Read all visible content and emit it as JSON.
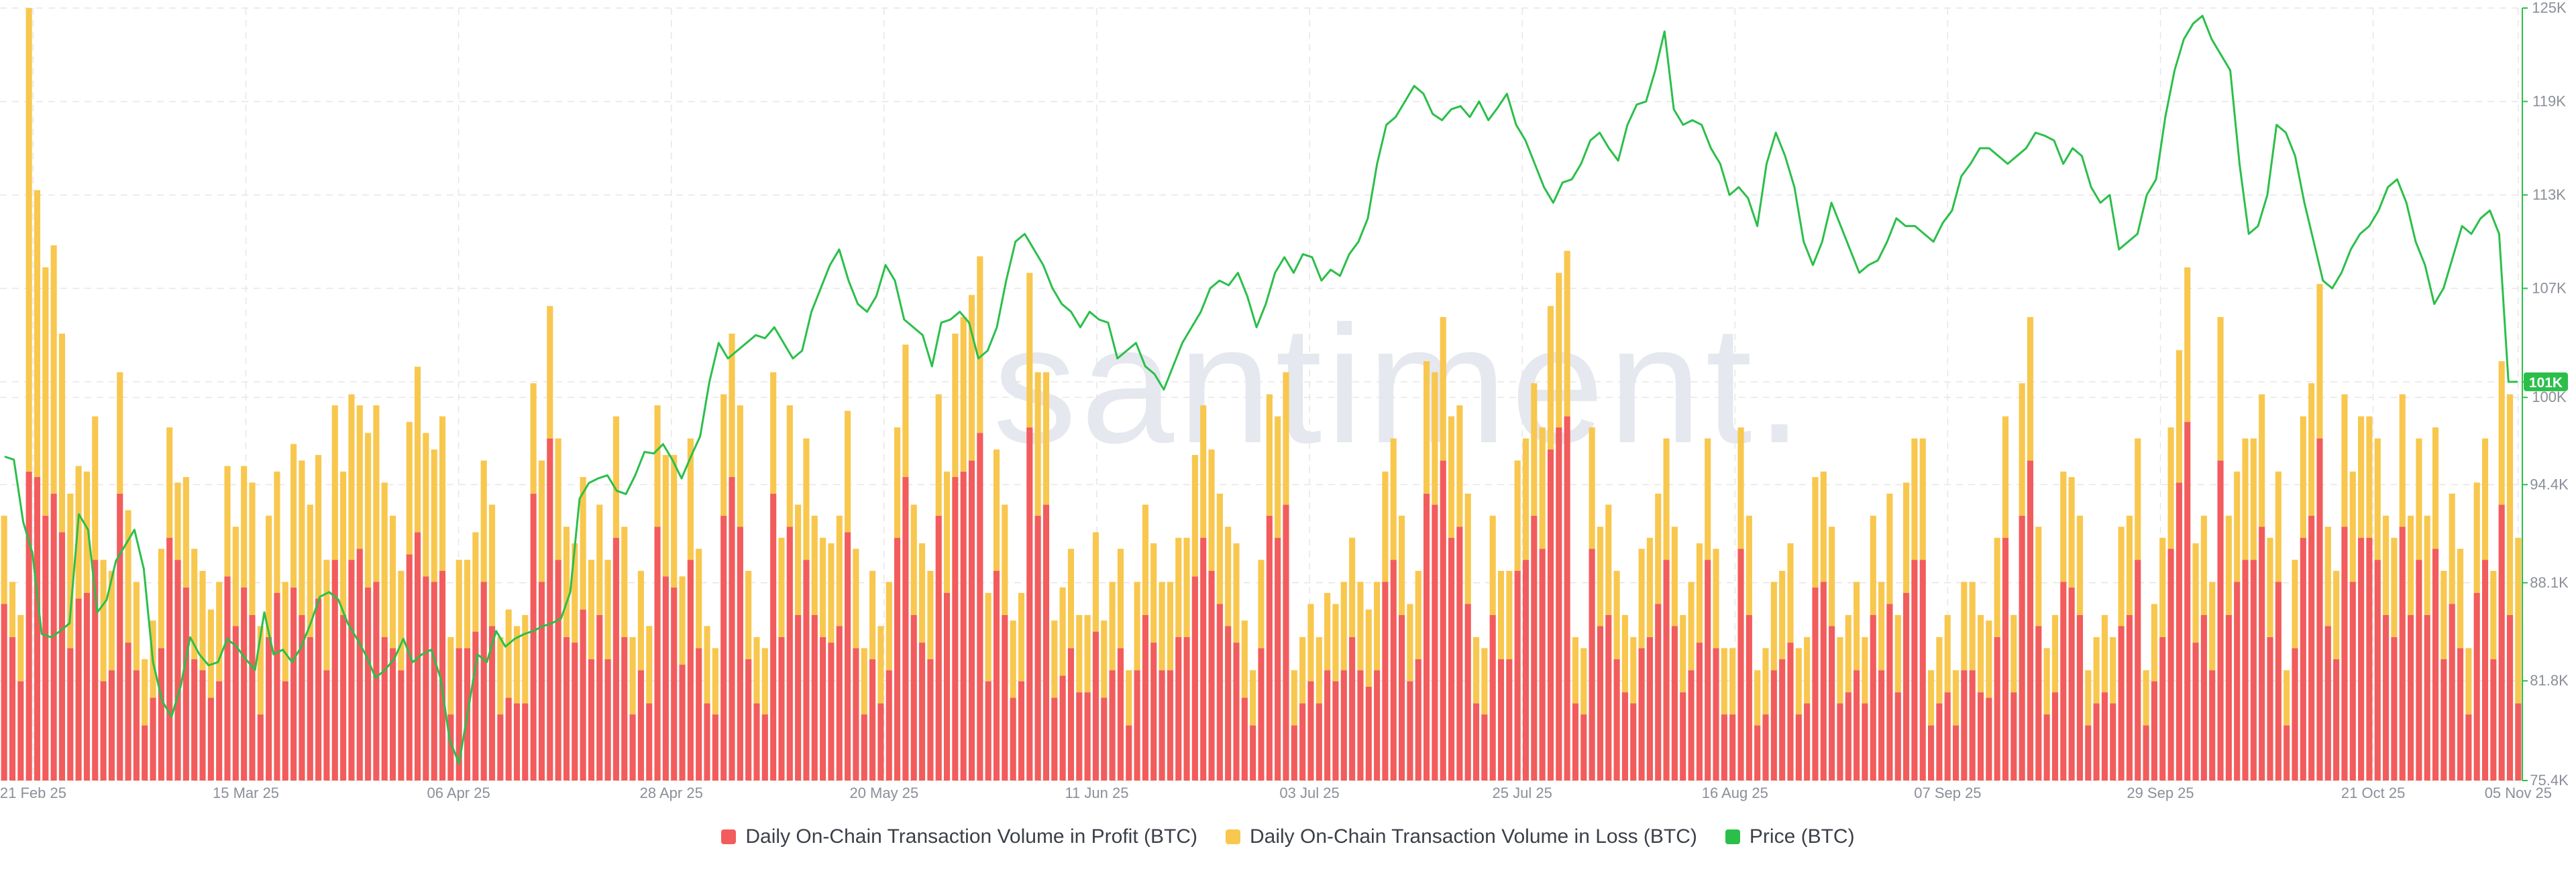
{
  "watermark": "santiment.",
  "colors": {
    "profit": "#f25c5c",
    "loss": "#f8c74e",
    "price": "#2bbf4a",
    "grid": "#e6e6e6",
    "tick": "#8a8f98"
  },
  "chart_data": {
    "type": "bar",
    "x_ticks": [
      "21 Feb 25",
      "15 Mar 25",
      "06 Apr 25",
      "28 Apr 25",
      "20 May 25",
      "11 Jun 25",
      "03 Jul 25",
      "25 Jul 25",
      "16 Aug 25",
      "07 Sep 25",
      "29 Sep 25",
      "21 Oct 25",
      "05 Nov 25"
    ],
    "x_start": "2025-02-18",
    "x_end": "2025-11-05",
    "price_axis": {
      "ticks": [
        "125K",
        "119K",
        "113K",
        "107K",
        "101K",
        "100K",
        "94.4K",
        "88.1K",
        "81.8K",
        "75.4K"
      ],
      "ylim": [
        75.4,
        125
      ]
    },
    "price_label": "101K",
    "legend_placement": "bottom",
    "series": [
      {
        "name": "Daily On-Chain Transaction Volume in Profit (BTC)",
        "type": "bar"
      },
      {
        "name": "Daily On-Chain Transaction Volume in Loss (BTC)",
        "type": "bar"
      },
      {
        "name": "Price (BTC)",
        "type": "line"
      }
    ],
    "bars_profit": [
      32,
      26,
      18,
      56,
      55,
      48,
      52,
      45,
      24,
      33,
      34,
      40,
      18,
      20,
      52,
      25,
      20,
      10,
      15,
      24,
      44,
      40,
      35,
      22,
      20,
      15,
      18,
      37,
      28,
      35,
      30,
      12,
      26,
      34,
      18,
      35,
      30,
      26,
      33,
      20,
      40,
      30,
      40,
      42,
      35,
      36,
      26,
      24,
      20,
      41,
      45,
      37,
      36,
      38,
      12,
      24,
      24,
      27,
      36,
      28,
      12,
      15,
      14,
      14,
      52,
      36,
      62,
      40,
      26,
      25,
      31,
      22,
      30,
      22,
      44,
      26,
      12,
      20,
      14,
      46,
      37,
      35,
      21,
      40,
      24,
      14,
      12,
      48,
      55,
      46,
      22,
      14,
      12,
      52,
      26,
      46,
      30,
      40,
      30,
      26,
      25,
      28,
      45,
      24,
      12,
      22,
      14,
      20,
      44,
      55,
      30,
      25,
      22,
      48,
      34,
      55,
      56,
      58,
      63,
      18,
      38,
      30,
      15,
      18,
      64,
      48,
      50,
      15,
      19,
      24,
      16,
      16,
      27,
      15,
      20,
      24,
      10,
      20,
      30,
      25,
      20,
      20,
      26,
      26,
      37,
      44,
      38,
      32,
      28,
      25,
      15,
      10,
      24,
      48,
      44,
      50,
      10,
      14,
      18,
      14,
      20,
      18,
      20,
      26,
      20,
      17,
      20,
      36,
      40,
      30,
      18,
      22,
      52,
      50,
      58,
      44,
      46,
      32,
      14,
      12,
      30,
      22,
      22,
      38,
      40,
      48,
      42,
      60,
      64,
      66,
      14,
      12,
      42,
      28,
      30,
      22,
      16,
      14,
      24,
      26,
      32,
      40,
      28,
      16,
      20,
      25,
      40,
      24,
      12,
      12,
      42,
      30,
      10,
      12,
      20,
      22,
      25,
      12,
      14,
      35,
      36,
      28,
      14,
      16,
      20,
      14,
      30,
      20,
      32,
      16,
      34,
      40,
      40,
      10,
      14,
      16,
      10,
      20,
      20,
      16,
      15,
      26,
      44,
      16,
      48,
      58,
      28,
      12,
      16,
      36,
      35,
      30,
      10,
      14,
      16,
      14,
      28,
      30,
      40,
      10,
      18,
      26,
      42,
      54,
      65,
      25,
      30,
      20,
      58,
      30,
      36,
      40,
      40,
      46,
      26,
      36,
      10,
      24,
      44,
      48,
      62,
      28,
      22,
      46,
      36,
      44,
      44,
      40,
      30,
      26,
      46,
      30,
      40,
      30,
      42,
      22,
      32,
      24,
      12,
      34,
      40,
      22,
      50,
      30,
      14
    ],
    "bars_loss": [
      16,
      10,
      12,
      84,
      52,
      45,
      45,
      36,
      28,
      24,
      22,
      26,
      22,
      18,
      22,
      24,
      16,
      12,
      14,
      18,
      20,
      14,
      20,
      20,
      18,
      16,
      18,
      20,
      18,
      22,
      24,
      16,
      22,
      22,
      18,
      26,
      28,
      24,
      26,
      20,
      28,
      26,
      30,
      26,
      28,
      32,
      28,
      24,
      18,
      24,
      30,
      26,
      24,
      28,
      14,
      16,
      16,
      18,
      22,
      22,
      14,
      16,
      14,
      16,
      20,
      22,
      24,
      22,
      20,
      18,
      24,
      18,
      20,
      18,
      22,
      20,
      14,
      18,
      14,
      22,
      22,
      24,
      16,
      22,
      18,
      14,
      12,
      22,
      26,
      22,
      16,
      12,
      12,
      22,
      18,
      22,
      20,
      22,
      18,
      18,
      18,
      20,
      22,
      18,
      12,
      16,
      14,
      16,
      20,
      24,
      20,
      18,
      16,
      22,
      22,
      26,
      28,
      30,
      32,
      16,
      22,
      20,
      14,
      16,
      28,
      26,
      24,
      14,
      16,
      18,
      14,
      14,
      18,
      14,
      16,
      18,
      10,
      16,
      20,
      18,
      16,
      16,
      18,
      18,
      22,
      24,
      22,
      20,
      18,
      18,
      14,
      10,
      16,
      22,
      22,
      24,
      10,
      12,
      14,
      12,
      14,
      14,
      16,
      18,
      16,
      14,
      16,
      20,
      22,
      18,
      14,
      16,
      24,
      24,
      26,
      22,
      22,
      20,
      12,
      12,
      18,
      16,
      16,
      20,
      22,
      24,
      22,
      26,
      28,
      30,
      12,
      12,
      22,
      18,
      20,
      16,
      14,
      12,
      18,
      18,
      20,
      22,
      18,
      14,
      16,
      18,
      22,
      18,
      12,
      12,
      22,
      18,
      10,
      12,
      16,
      16,
      18,
      12,
      12,
      20,
      20,
      18,
      12,
      14,
      16,
      12,
      18,
      16,
      20,
      14,
      20,
      22,
      22,
      10,
      12,
      14,
      10,
      16,
      16,
      14,
      14,
      18,
      22,
      14,
      24,
      26,
      18,
      12,
      14,
      20,
      20,
      18,
      10,
      12,
      14,
      12,
      18,
      18,
      22,
      10,
      14,
      18,
      22,
      24,
      28,
      18,
      18,
      16,
      26,
      18,
      20,
      22,
      22,
      24,
      18,
      20,
      10,
      16,
      22,
      24,
      28,
      18,
      16,
      24,
      20,
      22,
      22,
      22,
      18,
      18,
      24,
      18,
      22,
      18,
      22,
      16,
      20,
      18,
      12,
      20,
      22,
      16,
      26,
      40,
      30
    ],
    "price": [
      96.2,
      96.0,
      92.0,
      90.0,
      84.8,
      84.6,
      85.0,
      85.5,
      92.5,
      91.5,
      86.2,
      87.0,
      89.5,
      90.5,
      91.5,
      89.0,
      83.0,
      80.5,
      79.5,
      81.5,
      84.6,
      83.5,
      82.8,
      83.0,
      84.5,
      84.0,
      83.2,
      82.5,
      86.2,
      83.5,
      83.8,
      83.0,
      84.0,
      85.5,
      87.2,
      87.5,
      87.0,
      85.5,
      84.5,
      83.4,
      82.0,
      82.5,
      83.2,
      84.5,
      83.0,
      83.5,
      83.8,
      82.0,
      78.0,
      76.5,
      80.0,
      83.5,
      83.0,
      85.0,
      84.0,
      84.5,
      84.8,
      85.0,
      85.3,
      85.5,
      85.8,
      87.5,
      93.5,
      94.5,
      94.8,
      95.0,
      94.0,
      93.8,
      95.0,
      96.5,
      96.4,
      97.0,
      96.0,
      94.8,
      96.2,
      97.5,
      101.0,
      103.5,
      102.5,
      103.0,
      103.5,
      104.0,
      103.8,
      104.5,
      103.5,
      102.5,
      103.0,
      105.5,
      107.0,
      108.5,
      109.5,
      107.5,
      106.0,
      105.5,
      106.5,
      108.5,
      107.5,
      105.0,
      104.5,
      104.0,
      102.0,
      104.8,
      105.0,
      105.5,
      104.8,
      102.5,
      103.0,
      104.5,
      107.5,
      110.0,
      110.5,
      109.5,
      108.5,
      107.0,
      106.0,
      105.5,
      104.5,
      105.5,
      105.0,
      104.8,
      102.5,
      103.0,
      103.5,
      102.0,
      101.5,
      100.5,
      102.0,
      103.5,
      104.5,
      105.5,
      107.0,
      107.5,
      107.2,
      108.0,
      106.5,
      104.5,
      106.0,
      108.0,
      109.0,
      108.0,
      109.2,
      109.0,
      107.5,
      108.2,
      107.8,
      109.2,
      110.0,
      111.5,
      115.0,
      117.5,
      118.0,
      119.0,
      120.0,
      119.5,
      118.2,
      117.8,
      118.5,
      118.7,
      118.0,
      119.0,
      117.8,
      118.6,
      119.5,
      117.5,
      116.5,
      115.0,
      113.5,
      112.5,
      113.8,
      114.0,
      115.0,
      116.5,
      117.0,
      116.0,
      115.2,
      117.5,
      118.8,
      119.0,
      121.0,
      123.5,
      118.5,
      117.5,
      117.8,
      117.5,
      116.0,
      115.0,
      113.0,
      113.5,
      112.8,
      111.0,
      115.0,
      117.0,
      115.5,
      113.5,
      110.0,
      108.5,
      110.0,
      112.5,
      111.0,
      109.5,
      108.0,
      108.5,
      108.8,
      110.0,
      111.5,
      111.0,
      111.0,
      110.5,
      110.0,
      111.2,
      112.0,
      114.2,
      115.0,
      116.0,
      116.0,
      115.5,
      115.0,
      115.5,
      116.0,
      117.0,
      116.8,
      116.5,
      115.0,
      116.0,
      115.5,
      113.5,
      112.5,
      113.0,
      109.5,
      110.0,
      110.5,
      113.0,
      114.0,
      118.0,
      121.0,
      123.0,
      124.0,
      124.5,
      123.0,
      122.0,
      121.0,
      115.0,
      110.5,
      111.0,
      113.0,
      117.5,
      117.0,
      115.5,
      112.5,
      110.0,
      107.5,
      107.0,
      108.0,
      109.5,
      110.5,
      111.0,
      112.0,
      113.5,
      114.0,
      112.5,
      110.0,
      108.5,
      106.0,
      107.0,
      109.0,
      111.0,
      110.5,
      111.5,
      112.0,
      110.5,
      101.0,
      101.0
    ]
  }
}
